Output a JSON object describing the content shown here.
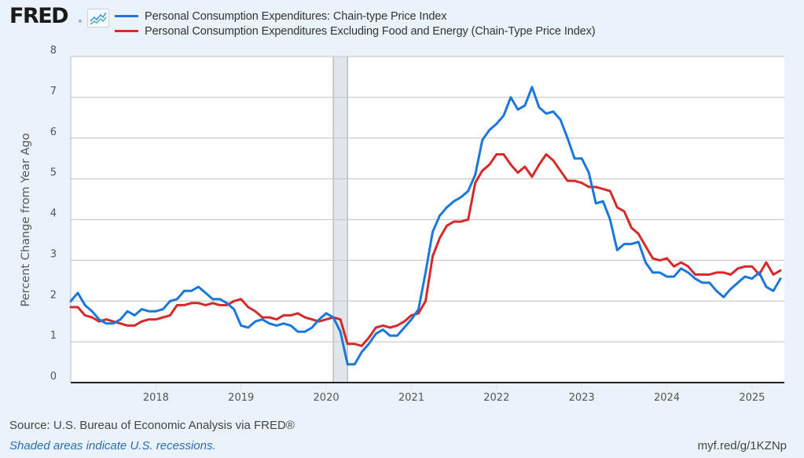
{
  "header": {
    "logo_text": "FRED",
    "logo_registered": "®",
    "logo_icon": "line-chart-icon"
  },
  "footer": {
    "source": "Source: U.S. Bureau of Economic Analysis via FRED®",
    "recession_note": "Shaded areas indicate U.S. recessions.",
    "short_link": "myf.red/g/1KZNp"
  },
  "colors": {
    "pce": "#1a78dc",
    "core_pce": "#d62a2a",
    "recession": "#e1e6ec",
    "grid": "#cccccc",
    "background": "#eaf2fa"
  },
  "chart_data": {
    "type": "line",
    "title": "",
    "xlabel": "",
    "ylabel": "Percent Change from Year Ago",
    "ylim": [
      0,
      8
    ],
    "yticks": [
      "0",
      "1",
      "2",
      "3",
      "4",
      "5",
      "6",
      "7",
      "8"
    ],
    "xlim": [
      "2017-01",
      "2025-05"
    ],
    "xticks": [
      "2018",
      "2019",
      "2020",
      "2021",
      "2022",
      "2023",
      "2024",
      "2025"
    ],
    "grid": true,
    "legend_position": "top",
    "frequency": "monthly",
    "start": "2017-01",
    "recessions": [
      {
        "start": "2020-02",
        "end": "2020-04"
      }
    ],
    "series": [
      {
        "name": "Personal Consumption Expenditures: Chain-type Price Index",
        "color": "#1a78dc",
        "values": [
          2.0,
          2.2,
          1.9,
          1.75,
          1.55,
          1.45,
          1.45,
          1.55,
          1.75,
          1.65,
          1.8,
          1.75,
          1.75,
          1.8,
          2.0,
          2.05,
          2.25,
          2.25,
          2.35,
          2.2,
          2.05,
          2.05,
          1.95,
          1.8,
          1.4,
          1.35,
          1.5,
          1.55,
          1.45,
          1.4,
          1.45,
          1.4,
          1.25,
          1.25,
          1.35,
          1.55,
          1.7,
          1.6,
          1.25,
          0.45,
          0.45,
          0.75,
          0.95,
          1.2,
          1.3,
          1.15,
          1.15,
          1.35,
          1.55,
          1.8,
          2.7,
          3.7,
          4.1,
          4.3,
          4.45,
          4.55,
          4.7,
          5.1,
          5.95,
          6.2,
          6.35,
          6.55,
          7.0,
          6.7,
          6.8,
          7.25,
          6.75,
          6.6,
          6.65,
          6.45,
          6.0,
          5.5,
          5.5,
          5.15,
          4.4,
          4.45,
          4.0,
          3.25,
          3.4,
          3.4,
          3.45,
          2.95,
          2.7,
          2.7,
          2.6,
          2.6,
          2.8,
          2.7,
          2.55,
          2.45,
          2.45,
          2.25,
          2.1,
          2.3,
          2.45,
          2.6,
          2.55,
          2.7,
          2.35,
          2.25,
          2.55
        ]
      },
      {
        "name": "Personal Consumption Expenditures Excluding Food and Energy (Chain-Type Price Index)",
        "color": "#d62a2a",
        "values": [
          1.85,
          1.85,
          1.65,
          1.6,
          1.5,
          1.55,
          1.5,
          1.45,
          1.4,
          1.4,
          1.5,
          1.55,
          1.55,
          1.6,
          1.65,
          1.9,
          1.9,
          1.95,
          1.95,
          1.9,
          1.95,
          1.9,
          1.9,
          2.0,
          2.05,
          1.85,
          1.75,
          1.6,
          1.6,
          1.55,
          1.65,
          1.65,
          1.7,
          1.6,
          1.55,
          1.5,
          1.55,
          1.6,
          1.55,
          0.95,
          0.95,
          0.9,
          1.1,
          1.35,
          1.4,
          1.35,
          1.4,
          1.5,
          1.65,
          1.7,
          2.0,
          3.1,
          3.55,
          3.85,
          3.95,
          3.95,
          4.0,
          4.9,
          5.2,
          5.35,
          5.6,
          5.6,
          5.35,
          5.15,
          5.3,
          5.05,
          5.35,
          5.6,
          5.45,
          5.2,
          4.95,
          4.95,
          4.9,
          4.8,
          4.8,
          4.75,
          4.7,
          4.3,
          4.2,
          3.8,
          3.65,
          3.35,
          3.05,
          3.0,
          3.05,
          2.85,
          2.95,
          2.85,
          2.65,
          2.65,
          2.65,
          2.7,
          2.7,
          2.65,
          2.8,
          2.85,
          2.85,
          2.65,
          2.95,
          2.65,
          2.75
        ]
      }
    ]
  }
}
